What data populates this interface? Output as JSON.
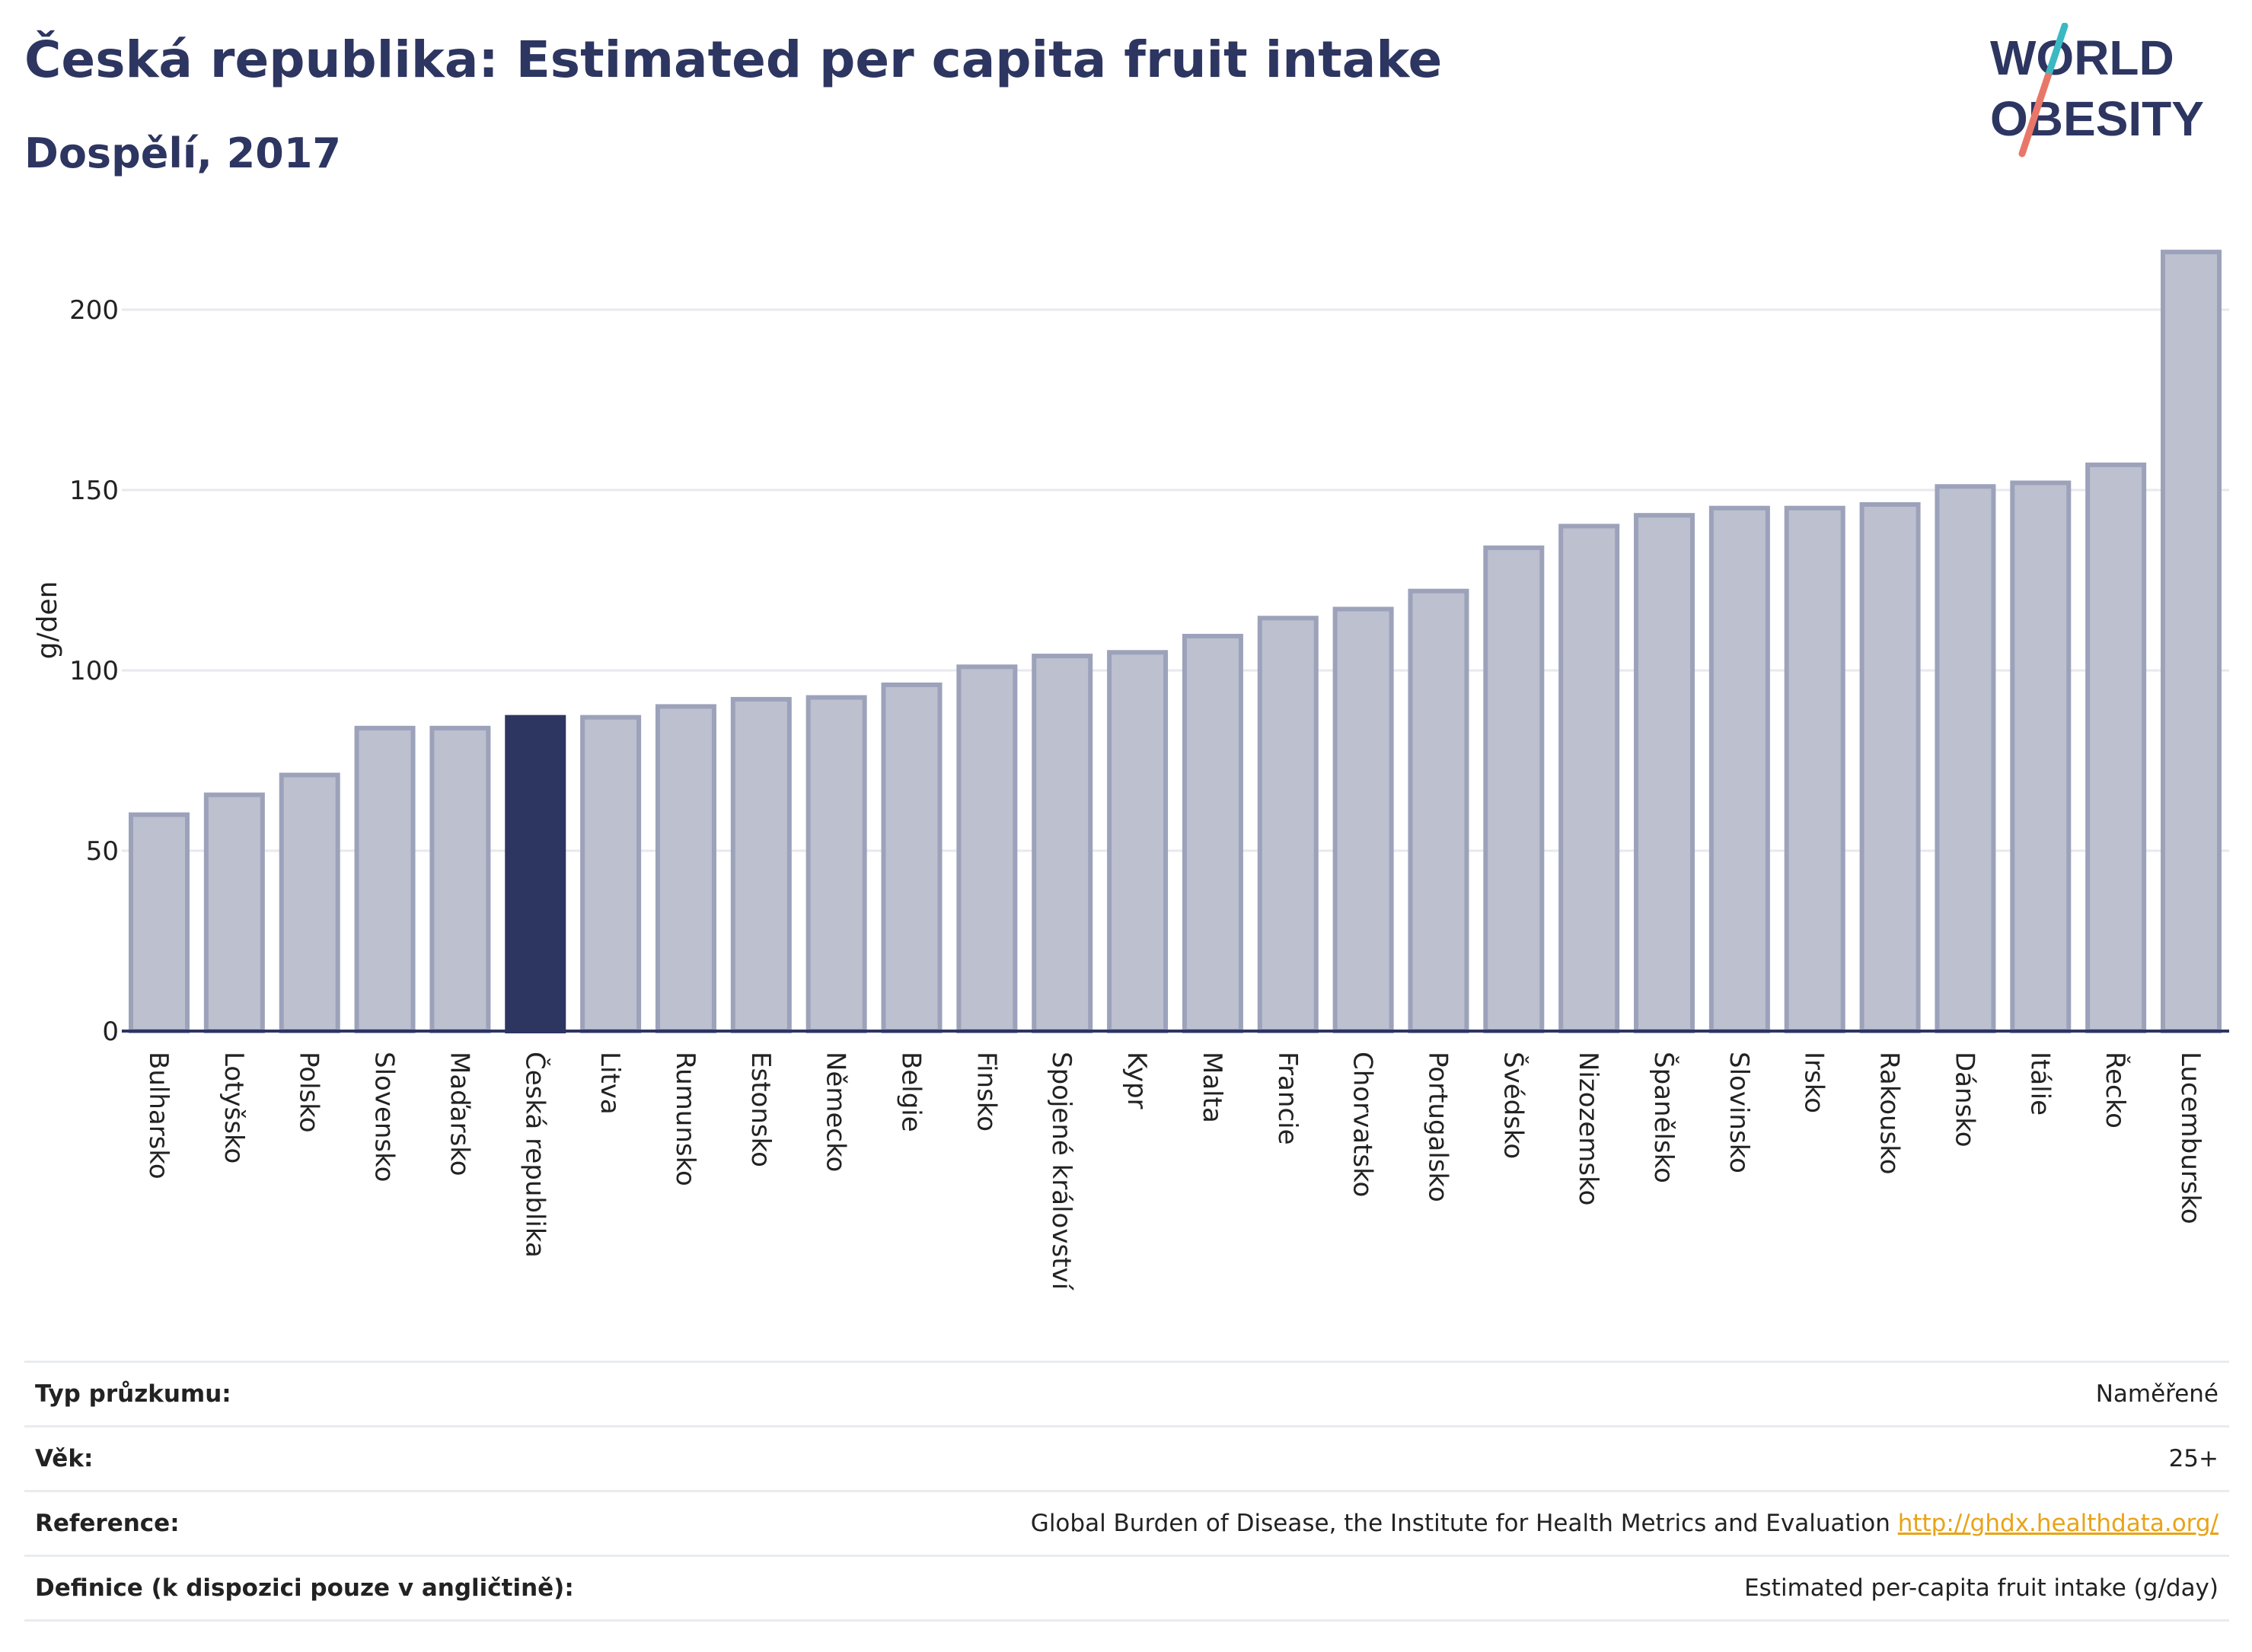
{
  "title": "Česká republika: Estimated per capita fruit intake",
  "subtitle": "Dospělí, 2017",
  "logo": {
    "line1": "WORLD",
    "line2": "OBESITY"
  },
  "colors": {
    "bar": "#bcc0cf",
    "bar_border": "#9da2bb",
    "highlight": "#2d3561",
    "grid": "#e7e9ee",
    "axis": "#2d3561",
    "title": "#2d3561"
  },
  "chart_data": {
    "type": "bar",
    "ylabel": "g/den",
    "ylim": [
      0,
      220
    ],
    "yticks": [
      0,
      50,
      100,
      150,
      200
    ],
    "grid": true,
    "highlight": "Česká republika",
    "categories": [
      "Bulharsko",
      "Lotyšsko",
      "Polsko",
      "Slovensko",
      "Maďarsko",
      "Česká republika",
      "Litva",
      "Rumunsko",
      "Estonsko",
      "Německo",
      "Belgie",
      "Finsko",
      "Spojené království",
      "Kypr",
      "Malta",
      "Francie",
      "Chorvatsko",
      "Portugalsko",
      "Švédsko",
      "Nizozemsko",
      "Španělsko",
      "Slovinsko",
      "Irsko",
      "Rakousko",
      "Dánsko",
      "Itálie",
      "Řecko",
      "Lucembursko"
    ],
    "values": [
      60,
      65.5,
      71,
      84,
      84,
      87,
      87,
      90,
      92,
      92.5,
      96,
      101,
      104,
      105,
      109.5,
      114.5,
      117,
      122,
      134,
      140,
      143,
      145,
      145,
      146,
      151,
      152,
      157,
      216
    ]
  },
  "info": {
    "rows": [
      {
        "label": "Typ průzkumu:",
        "value": "Naměřené"
      },
      {
        "label": "Věk:",
        "value": "25+"
      },
      {
        "label": "Reference:",
        "value": "Global Burden of Disease, the Institute for Health Metrics and Evaluation",
        "link": "http://ghdx.healthdata.org/"
      },
      {
        "label": "Definice (k dispozici pouze v angličtině):",
        "value": "Estimated per-capita fruit intake (g/day)"
      }
    ]
  }
}
